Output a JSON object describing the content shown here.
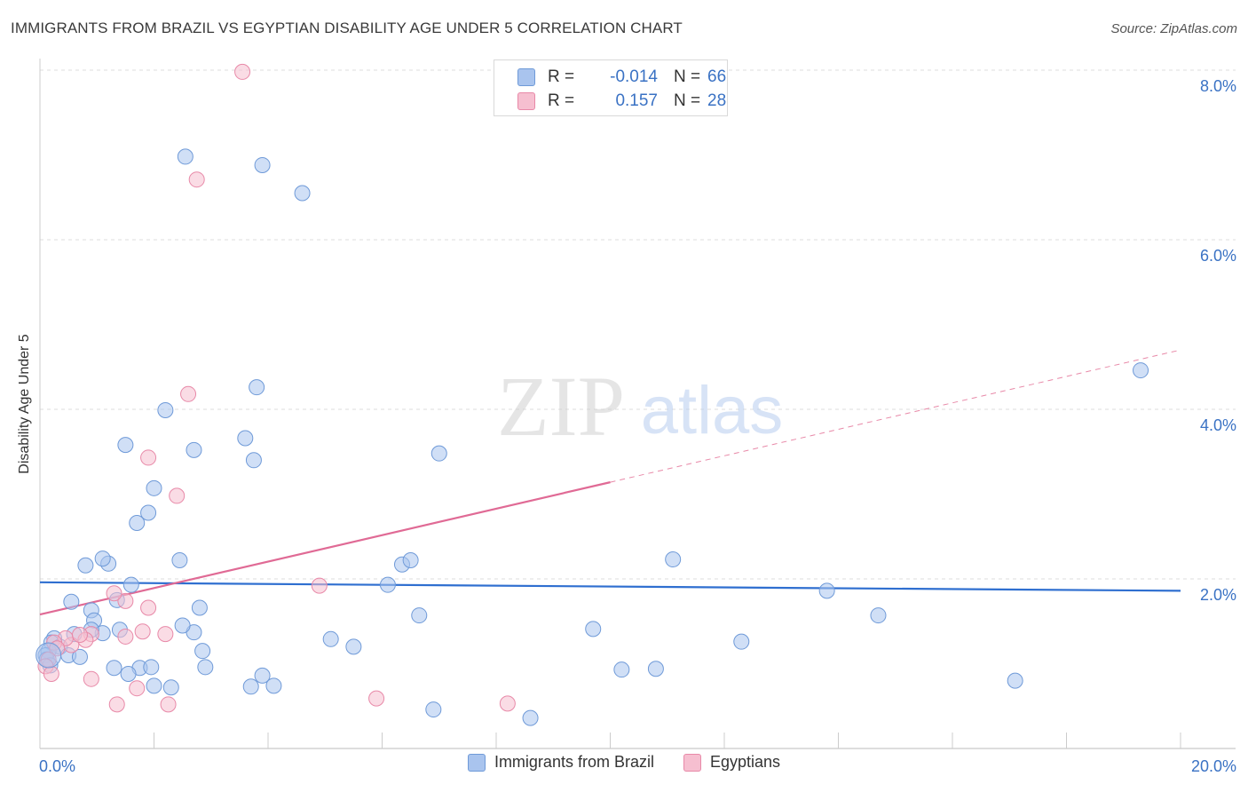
{
  "title": "IMMIGRANTS FROM BRAZIL VS EGYPTIAN DISABILITY AGE UNDER 5 CORRELATION CHART",
  "source": "Source: ZipAtlas.com",
  "watermark": {
    "zip": "ZIP",
    "atlas": "atlas"
  },
  "stats": [
    {
      "r_label": "R =",
      "r_value": "-0.014",
      "n_label": "N =",
      "n_value": "66",
      "color": "#a9c4ee",
      "border": "#6f9ad8"
    },
    {
      "r_label": "R =",
      "r_value": "0.157",
      "n_label": "N =",
      "n_value": "28",
      "color": "#f6bfd0",
      "border": "#e889a8"
    }
  ],
  "legend": [
    {
      "label": "Immigrants from Brazil",
      "color": "#a9c4ee",
      "border": "#6f9ad8"
    },
    {
      "label": "Egyptians",
      "color": "#f6bfd0",
      "border": "#e889a8"
    }
  ],
  "chart_data": {
    "type": "scatter",
    "title": "IMMIGRANTS FROM BRAZIL VS EGYPTIAN DISABILITY AGE UNDER 5 CORRELATION CHART",
    "xlabel": "",
    "ylabel": "Disability Age Under 5",
    "xlim": [
      0,
      20
    ],
    "ylim": [
      0,
      8
    ],
    "x_tick_labels": {
      "min": "0.0%",
      "max": "20.0%"
    },
    "y_ticks": [
      2,
      4,
      6,
      8
    ],
    "y_tick_labels": [
      "2.0%",
      "4.0%",
      "6.0%",
      "8.0%"
    ],
    "grid": true,
    "series": [
      {
        "name": "Immigrants from Brazil",
        "color": "#a9c4ee",
        "stroke": "#6f9ad8",
        "x": [
          2.55,
          3.9,
          4.6,
          3.8,
          2.2,
          1.5,
          3.6,
          2.7,
          3.75,
          2.0,
          1.9,
          1.7,
          0.8,
          1.2,
          2.45,
          1.1,
          1.35,
          2.8,
          0.55,
          0.9,
          2.7,
          1.4,
          1.1,
          0.95,
          0.9,
          0.6,
          0.25,
          0.2,
          0.35,
          0.15,
          0.1,
          0.12,
          0.18,
          0.5,
          0.7,
          1.3,
          1.75,
          1.55,
          1.95,
          2.0,
          2.3,
          2.5,
          2.85,
          2.9,
          3.7,
          3.9,
          4.1,
          5.1,
          5.5,
          6.1,
          6.35,
          6.5,
          6.65,
          6.9,
          7.0,
          8.6,
          9.7,
          10.2,
          10.8,
          11.1,
          12.3,
          13.8,
          14.7,
          17.1,
          19.3,
          1.6
        ],
        "y": [
          6.98,
          6.88,
          6.55,
          4.26,
          3.99,
          3.58,
          3.66,
          3.52,
          3.4,
          3.07,
          2.78,
          2.66,
          2.16,
          2.18,
          2.22,
          2.24,
          1.75,
          1.66,
          1.73,
          1.63,
          1.37,
          1.4,
          1.36,
          1.51,
          1.4,
          1.35,
          1.3,
          1.25,
          1.2,
          1.15,
          1.1,
          1.05,
          0.98,
          1.1,
          1.08,
          0.95,
          0.95,
          0.88,
          0.96,
          0.74,
          0.72,
          1.45,
          1.15,
          0.96,
          0.73,
          0.86,
          0.74,
          1.29,
          1.2,
          1.93,
          2.17,
          2.22,
          1.57,
          0.46,
          3.48,
          0.36,
          1.41,
          0.93,
          0.94,
          2.23,
          1.26,
          1.86,
          1.57,
          0.8,
          4.46,
          1.93
        ],
        "trend": {
          "x0": 0,
          "y0": 1.96,
          "x1": 20,
          "y1": 1.86
        }
      },
      {
        "name": "Egyptians",
        "color": "#f6bfd0",
        "stroke": "#e889a8",
        "x": [
          3.55,
          2.75,
          2.6,
          1.9,
          2.4,
          1.9,
          1.5,
          1.3,
          1.8,
          0.9,
          0.55,
          0.45,
          0.8,
          1.5,
          2.2,
          0.7,
          0.25,
          0.3,
          0.15,
          0.1,
          0.2,
          1.35,
          1.7,
          0.9,
          2.25,
          4.9,
          5.9,
          8.2
        ],
        "y": [
          7.98,
          6.71,
          4.18,
          3.43,
          2.98,
          1.66,
          1.74,
          1.83,
          1.38,
          1.35,
          1.22,
          1.3,
          1.28,
          1.32,
          1.35,
          1.34,
          1.25,
          1.18,
          1.05,
          0.97,
          0.88,
          0.52,
          0.71,
          0.82,
          0.52,
          1.92,
          0.59,
          0.53
        ],
        "trend": {
          "x0": 0,
          "y0": 1.58,
          "x1": 10,
          "y1": 3.14,
          "dash_x1": 20,
          "dash_y1": 4.7
        }
      }
    ]
  }
}
